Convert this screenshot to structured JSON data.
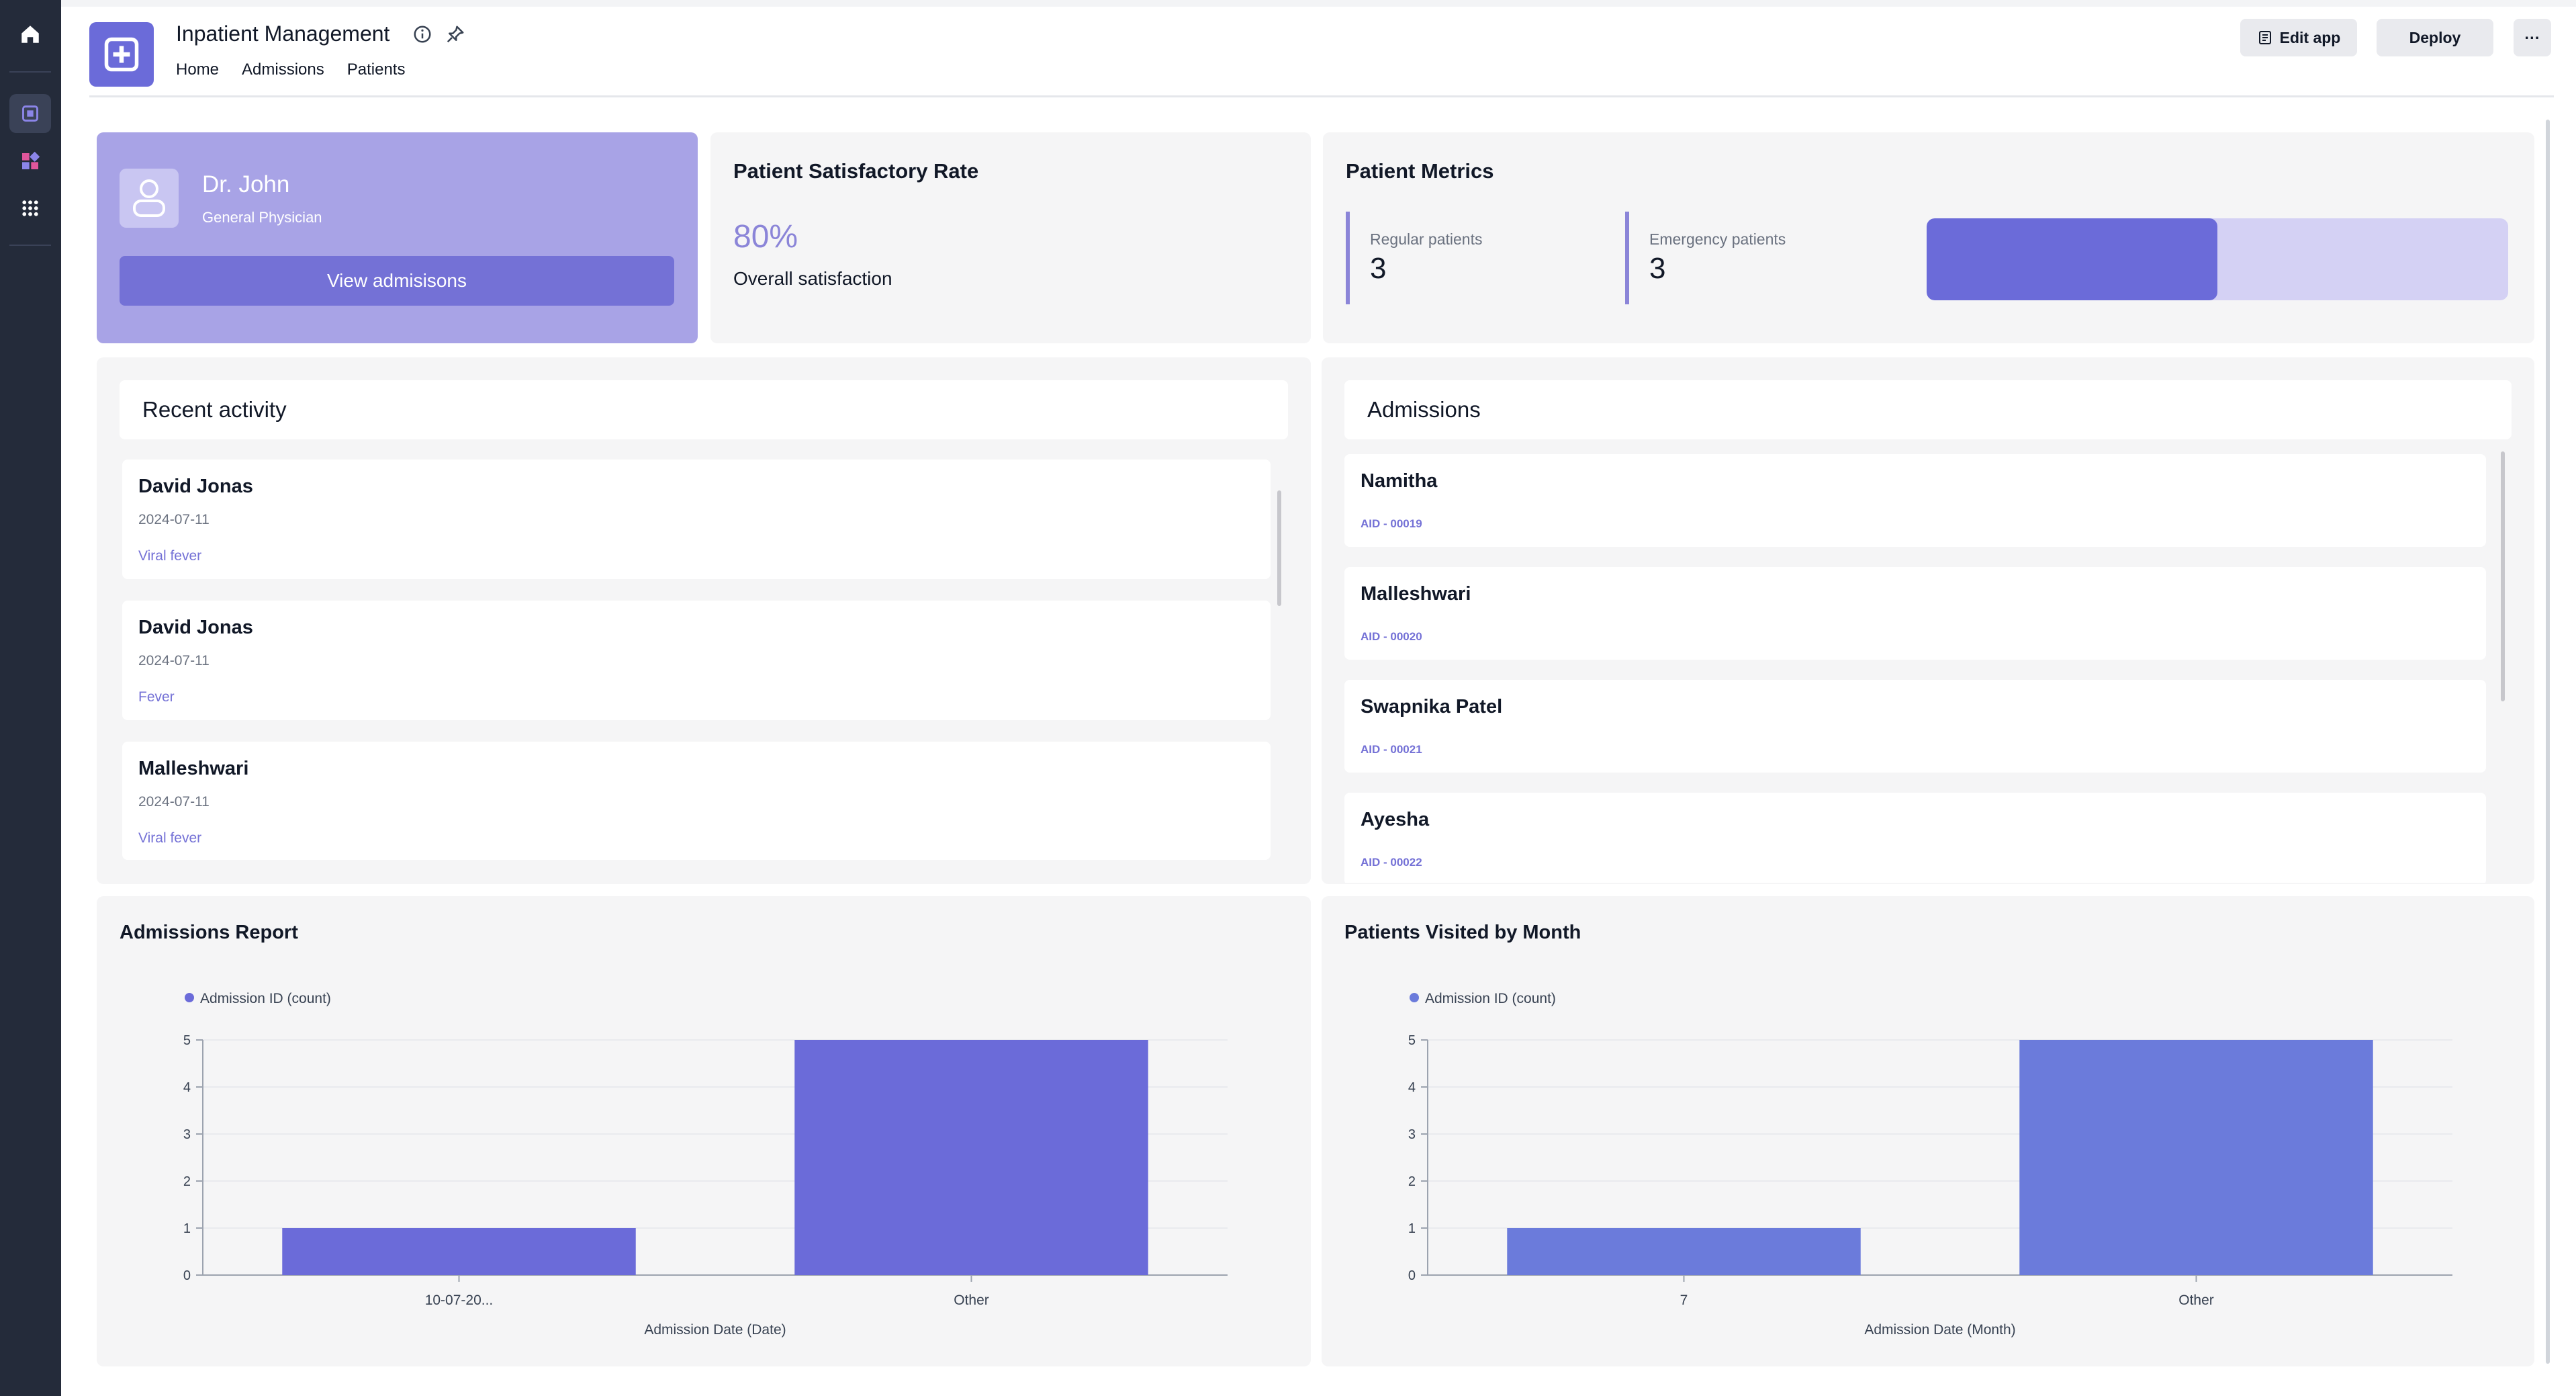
{
  "app": {
    "title": "Inpatient Management",
    "nav": [
      "Home",
      "Admissions",
      "Patients"
    ],
    "edit_label": "Edit app",
    "deploy_label": "Deploy",
    "more_label": "···"
  },
  "rail": {
    "icons": [
      "home-icon",
      "app-icon",
      "widgets-icon",
      "grid-icon"
    ]
  },
  "doctor": {
    "name": "Dr. John",
    "role": "General Physician",
    "button_label": "View admisisons"
  },
  "satisfaction": {
    "title": "Patient Satisfactory Rate",
    "value": "80%",
    "label": "Overall satisfaction"
  },
  "metrics": {
    "title": "Patient Metrics",
    "regular_label": "Regular patients",
    "regular_value": "3",
    "emergency_label": "Emergency patients",
    "emergency_value": "3",
    "bar_fraction": 0.5
  },
  "recent_activity": {
    "title": "Recent activity",
    "items": [
      {
        "name": "David Jonas",
        "date": "2024-07-11",
        "tag": "Viral fever"
      },
      {
        "name": "David Jonas",
        "date": "2024-07-11",
        "tag": "Fever"
      },
      {
        "name": "Malleshwari",
        "date": "2024-07-11",
        "tag": "Viral fever"
      }
    ]
  },
  "admissions": {
    "title": "Admissions",
    "items": [
      {
        "name": "Namitha",
        "aid": "AID - 00019"
      },
      {
        "name": "Malleshwari",
        "aid": "AID - 00020"
      },
      {
        "name": "Swapnika Patel",
        "aid": "AID - 00021"
      },
      {
        "name": "Ayesha",
        "aid": "AID - 00022"
      }
    ]
  },
  "colors": {
    "accent": "#6b6bd9",
    "card_purple": "#a8a3e6",
    "chart2_bar": "#6b7bdb"
  },
  "chart_data": [
    {
      "type": "bar",
      "title": "Admissions Report",
      "legend": "Admission ID (count)",
      "categories": [
        "10-07-20...",
        "Other"
      ],
      "series": [
        {
          "name": "Admission ID (count)",
          "values": [
            1,
            5
          ]
        }
      ],
      "xlabel": "Admission Date (Date)",
      "ylabel": "",
      "ylim": [
        0,
        5
      ],
      "yticks": [
        0,
        1,
        2,
        3,
        4,
        5
      ],
      "grid": true,
      "legend_position": "top-left",
      "color": "#6b6bd9"
    },
    {
      "type": "bar",
      "title": "Patients Visited by Month",
      "legend": "Admission ID (count)",
      "categories": [
        "7",
        "Other"
      ],
      "series": [
        {
          "name": "Admission ID (count)",
          "values": [
            1,
            5
          ]
        }
      ],
      "xlabel": "Admission Date (Month)",
      "ylabel": "",
      "ylim": [
        0,
        5
      ],
      "yticks": [
        0,
        1,
        2,
        3,
        4,
        5
      ],
      "grid": true,
      "legend_position": "top-left",
      "color": "#6b7bdb"
    }
  ]
}
